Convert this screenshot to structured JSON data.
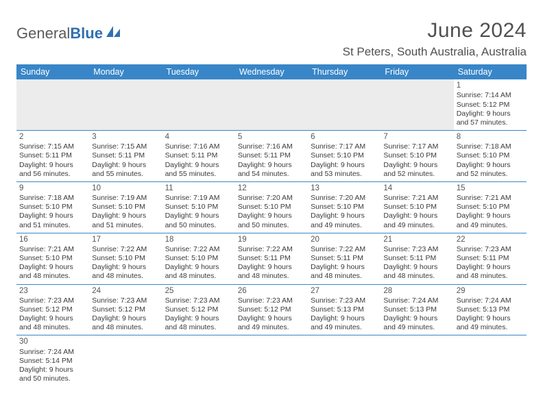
{
  "logo": {
    "part1": "General",
    "part2": "Blue"
  },
  "title": "June 2024",
  "location": "St Peters, South Australia, Australia",
  "calendar": {
    "headers": [
      "Sunday",
      "Monday",
      "Tuesday",
      "Wednesday",
      "Thursday",
      "Friday",
      "Saturday"
    ],
    "header_bg": "#3886c8",
    "header_fg": "#ffffff",
    "border_color": "#3886c8",
    "empty_bg": "#ececec",
    "text_color": "#3a3a3a",
    "body_fontsize": 10.5,
    "header_fontsize": 12.5,
    "title_fontsize": 30,
    "location_fontsize": 17,
    "weeks": [
      [
        null,
        null,
        null,
        null,
        null,
        null,
        {
          "n": "1",
          "sunrise": "Sunrise: 7:14 AM",
          "sunset": "Sunset: 5:12 PM",
          "d1": "Daylight: 9 hours",
          "d2": "and 57 minutes."
        }
      ],
      [
        {
          "n": "2",
          "sunrise": "Sunrise: 7:15 AM",
          "sunset": "Sunset: 5:11 PM",
          "d1": "Daylight: 9 hours",
          "d2": "and 56 minutes."
        },
        {
          "n": "3",
          "sunrise": "Sunrise: 7:15 AM",
          "sunset": "Sunset: 5:11 PM",
          "d1": "Daylight: 9 hours",
          "d2": "and 55 minutes."
        },
        {
          "n": "4",
          "sunrise": "Sunrise: 7:16 AM",
          "sunset": "Sunset: 5:11 PM",
          "d1": "Daylight: 9 hours",
          "d2": "and 55 minutes."
        },
        {
          "n": "5",
          "sunrise": "Sunrise: 7:16 AM",
          "sunset": "Sunset: 5:11 PM",
          "d1": "Daylight: 9 hours",
          "d2": "and 54 minutes."
        },
        {
          "n": "6",
          "sunrise": "Sunrise: 7:17 AM",
          "sunset": "Sunset: 5:10 PM",
          "d1": "Daylight: 9 hours",
          "d2": "and 53 minutes."
        },
        {
          "n": "7",
          "sunrise": "Sunrise: 7:17 AM",
          "sunset": "Sunset: 5:10 PM",
          "d1": "Daylight: 9 hours",
          "d2": "and 52 minutes."
        },
        {
          "n": "8",
          "sunrise": "Sunrise: 7:18 AM",
          "sunset": "Sunset: 5:10 PM",
          "d1": "Daylight: 9 hours",
          "d2": "and 52 minutes."
        }
      ],
      [
        {
          "n": "9",
          "sunrise": "Sunrise: 7:18 AM",
          "sunset": "Sunset: 5:10 PM",
          "d1": "Daylight: 9 hours",
          "d2": "and 51 minutes."
        },
        {
          "n": "10",
          "sunrise": "Sunrise: 7:19 AM",
          "sunset": "Sunset: 5:10 PM",
          "d1": "Daylight: 9 hours",
          "d2": "and 51 minutes."
        },
        {
          "n": "11",
          "sunrise": "Sunrise: 7:19 AM",
          "sunset": "Sunset: 5:10 PM",
          "d1": "Daylight: 9 hours",
          "d2": "and 50 minutes."
        },
        {
          "n": "12",
          "sunrise": "Sunrise: 7:20 AM",
          "sunset": "Sunset: 5:10 PM",
          "d1": "Daylight: 9 hours",
          "d2": "and 50 minutes."
        },
        {
          "n": "13",
          "sunrise": "Sunrise: 7:20 AM",
          "sunset": "Sunset: 5:10 PM",
          "d1": "Daylight: 9 hours",
          "d2": "and 49 minutes."
        },
        {
          "n": "14",
          "sunrise": "Sunrise: 7:21 AM",
          "sunset": "Sunset: 5:10 PM",
          "d1": "Daylight: 9 hours",
          "d2": "and 49 minutes."
        },
        {
          "n": "15",
          "sunrise": "Sunrise: 7:21 AM",
          "sunset": "Sunset: 5:10 PM",
          "d1": "Daylight: 9 hours",
          "d2": "and 49 minutes."
        }
      ],
      [
        {
          "n": "16",
          "sunrise": "Sunrise: 7:21 AM",
          "sunset": "Sunset: 5:10 PM",
          "d1": "Daylight: 9 hours",
          "d2": "and 48 minutes."
        },
        {
          "n": "17",
          "sunrise": "Sunrise: 7:22 AM",
          "sunset": "Sunset: 5:10 PM",
          "d1": "Daylight: 9 hours",
          "d2": "and 48 minutes."
        },
        {
          "n": "18",
          "sunrise": "Sunrise: 7:22 AM",
          "sunset": "Sunset: 5:10 PM",
          "d1": "Daylight: 9 hours",
          "d2": "and 48 minutes."
        },
        {
          "n": "19",
          "sunrise": "Sunrise: 7:22 AM",
          "sunset": "Sunset: 5:11 PM",
          "d1": "Daylight: 9 hours",
          "d2": "and 48 minutes."
        },
        {
          "n": "20",
          "sunrise": "Sunrise: 7:22 AM",
          "sunset": "Sunset: 5:11 PM",
          "d1": "Daylight: 9 hours",
          "d2": "and 48 minutes."
        },
        {
          "n": "21",
          "sunrise": "Sunrise: 7:23 AM",
          "sunset": "Sunset: 5:11 PM",
          "d1": "Daylight: 9 hours",
          "d2": "and 48 minutes."
        },
        {
          "n": "22",
          "sunrise": "Sunrise: 7:23 AM",
          "sunset": "Sunset: 5:11 PM",
          "d1": "Daylight: 9 hours",
          "d2": "and 48 minutes."
        }
      ],
      [
        {
          "n": "23",
          "sunrise": "Sunrise: 7:23 AM",
          "sunset": "Sunset: 5:12 PM",
          "d1": "Daylight: 9 hours",
          "d2": "and 48 minutes."
        },
        {
          "n": "24",
          "sunrise": "Sunrise: 7:23 AM",
          "sunset": "Sunset: 5:12 PM",
          "d1": "Daylight: 9 hours",
          "d2": "and 48 minutes."
        },
        {
          "n": "25",
          "sunrise": "Sunrise: 7:23 AM",
          "sunset": "Sunset: 5:12 PM",
          "d1": "Daylight: 9 hours",
          "d2": "and 48 minutes."
        },
        {
          "n": "26",
          "sunrise": "Sunrise: 7:23 AM",
          "sunset": "Sunset: 5:12 PM",
          "d1": "Daylight: 9 hours",
          "d2": "and 49 minutes."
        },
        {
          "n": "27",
          "sunrise": "Sunrise: 7:23 AM",
          "sunset": "Sunset: 5:13 PM",
          "d1": "Daylight: 9 hours",
          "d2": "and 49 minutes."
        },
        {
          "n": "28",
          "sunrise": "Sunrise: 7:24 AM",
          "sunset": "Sunset: 5:13 PM",
          "d1": "Daylight: 9 hours",
          "d2": "and 49 minutes."
        },
        {
          "n": "29",
          "sunrise": "Sunrise: 7:24 AM",
          "sunset": "Sunset: 5:13 PM",
          "d1": "Daylight: 9 hours",
          "d2": "and 49 minutes."
        }
      ],
      [
        {
          "n": "30",
          "sunrise": "Sunrise: 7:24 AM",
          "sunset": "Sunset: 5:14 PM",
          "d1": "Daylight: 9 hours",
          "d2": "and 50 minutes."
        },
        null,
        null,
        null,
        null,
        null,
        null
      ]
    ]
  }
}
